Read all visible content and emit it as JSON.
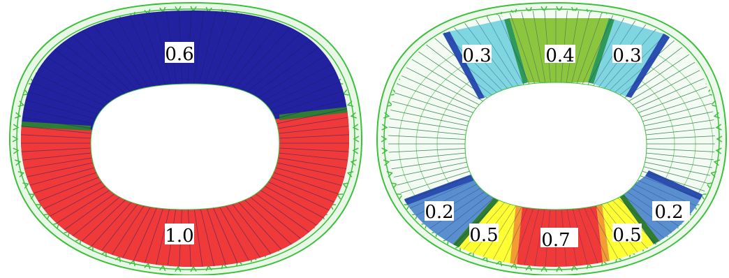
{
  "left_panel": {
    "labels": [
      {
        "id": "upper",
        "text": "0.6"
      },
      {
        "id": "lower",
        "text": "1.0"
      }
    ]
  },
  "right_panel": {
    "labels": [
      {
        "id": "top-left",
        "text": "0.3"
      },
      {
        "id": "top-center",
        "text": "0.4"
      },
      {
        "id": "top-right",
        "text": "0.3"
      },
      {
        "id": "bottom-far-left",
        "text": "0.2"
      },
      {
        "id": "bottom-left",
        "text": "0.5"
      },
      {
        "id": "bottom-center",
        "text": "0.7"
      },
      {
        "id": "bottom-right",
        "text": "0.5"
      },
      {
        "id": "bottom-far-right",
        "text": "0.2"
      }
    ]
  },
  "colors": {
    "blue": "#2222a0",
    "red": "#f03a3a",
    "green_band": "#2e7d32",
    "frame_green": "#3cc03c",
    "cyan": "#7fd6e0",
    "lime": "#8cc63f",
    "steel_blue": "#5a8fcf",
    "yellow": "#ffff33",
    "orange": "#f39c33"
  }
}
